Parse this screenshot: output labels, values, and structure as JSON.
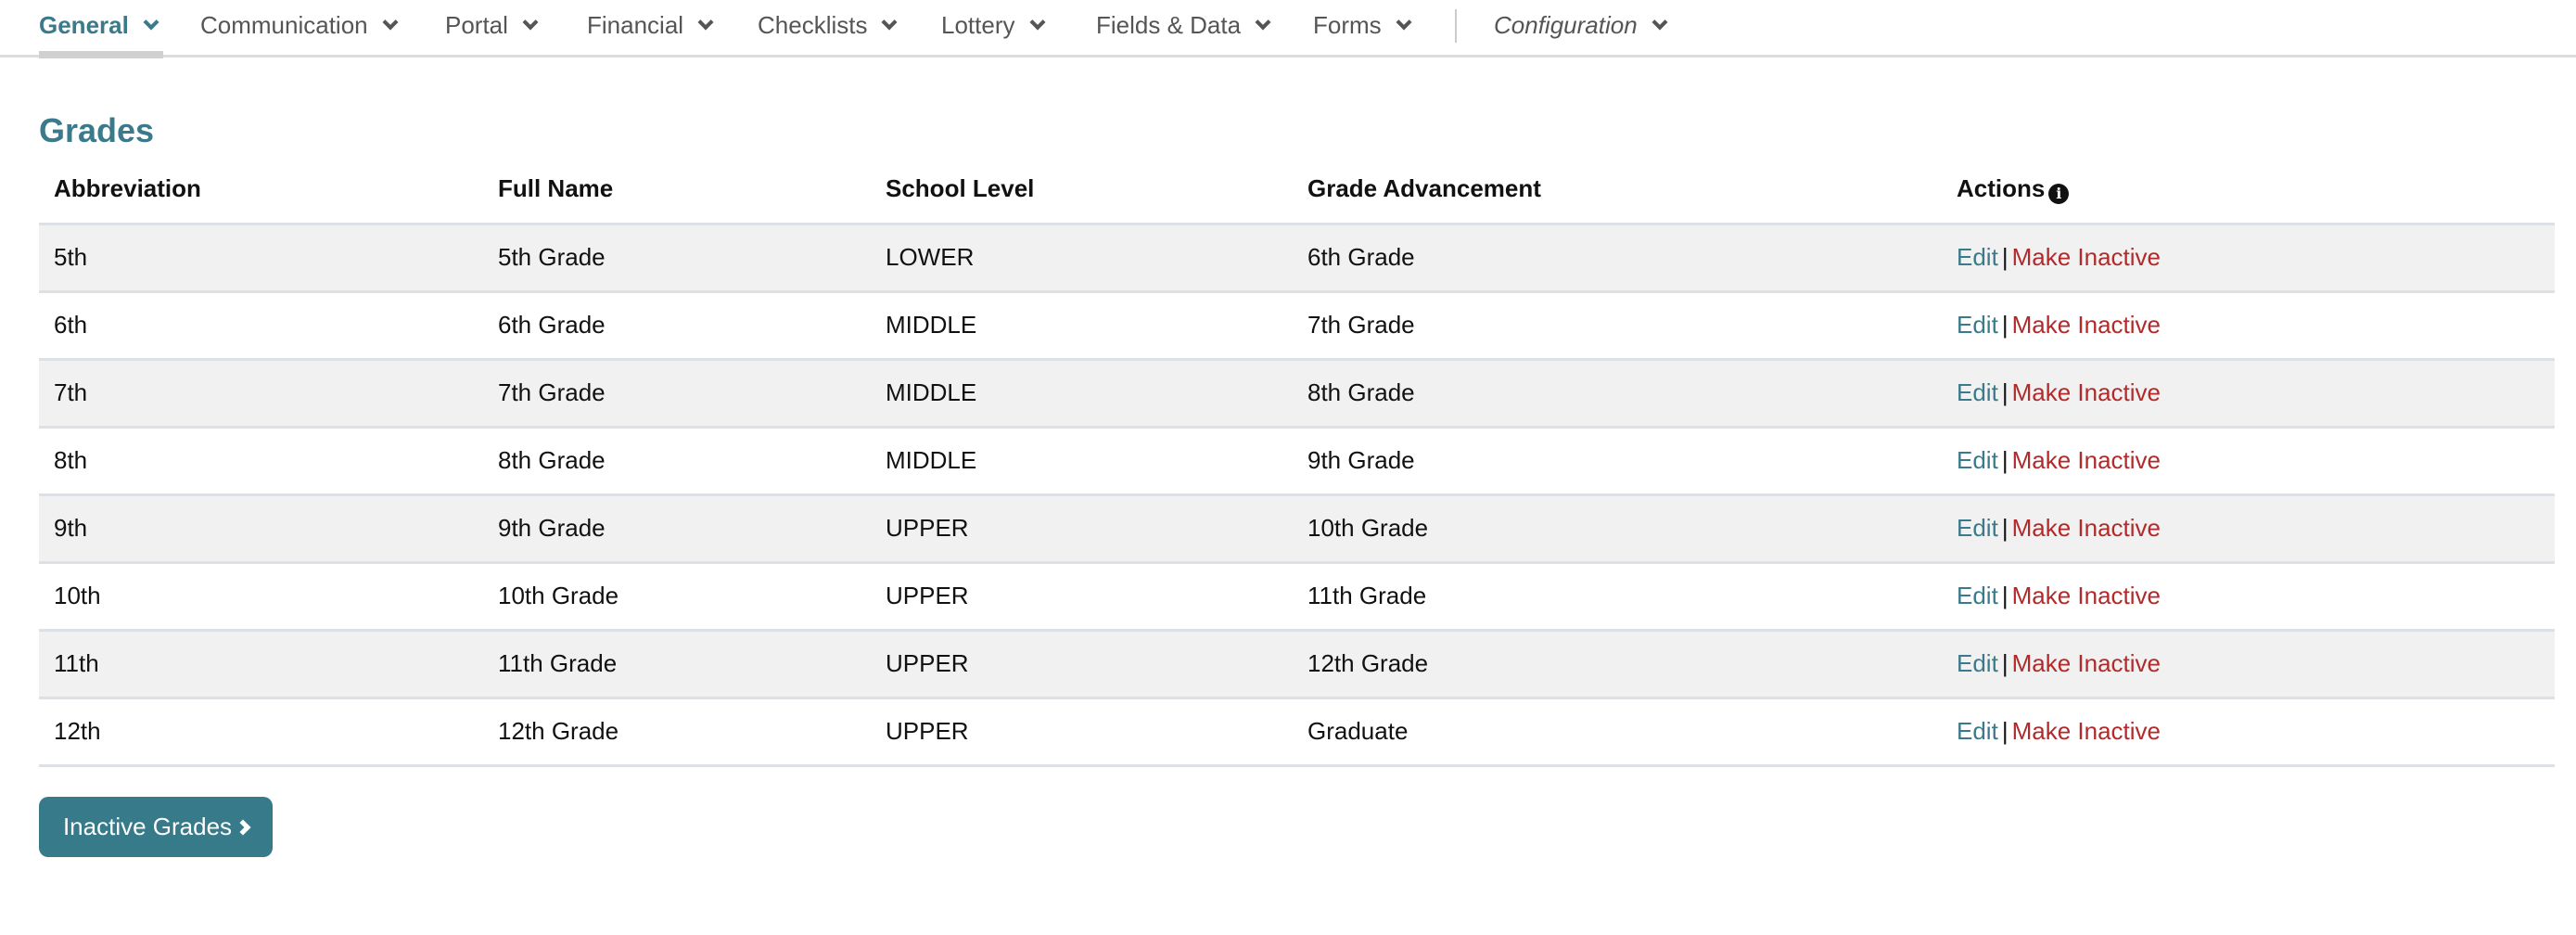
{
  "nav": {
    "items": [
      {
        "label": "General"
      },
      {
        "label": "Communication"
      },
      {
        "label": "Portal"
      },
      {
        "label": "Financial"
      },
      {
        "label": "Checklists"
      },
      {
        "label": "Lottery"
      },
      {
        "label": "Fields & Data"
      },
      {
        "label": "Forms"
      },
      {
        "label": "Configuration"
      }
    ],
    "active": "General"
  },
  "page": {
    "title": "Grades"
  },
  "table": {
    "headers": [
      "Abbreviation",
      "Full Name",
      "School Level",
      "Grade Advancement",
      "Actions"
    ],
    "rows": [
      {
        "abbr": "5th",
        "name": "5th Grade",
        "level": "LOWER",
        "advance": "6th Grade"
      },
      {
        "abbr": "6th",
        "name": "6th Grade",
        "level": "MIDDLE",
        "advance": "7th Grade"
      },
      {
        "abbr": "7th",
        "name": "7th Grade",
        "level": "MIDDLE",
        "advance": "8th Grade"
      },
      {
        "abbr": "8th",
        "name": "8th Grade",
        "level": "MIDDLE",
        "advance": "9th Grade"
      },
      {
        "abbr": "9th",
        "name": "9th Grade",
        "level": "UPPER",
        "advance": "10th Grade"
      },
      {
        "abbr": "10th",
        "name": "10th Grade",
        "level": "UPPER",
        "advance": "11th Grade"
      },
      {
        "abbr": "11th",
        "name": "11th Grade",
        "level": "UPPER",
        "advance": "12th Grade"
      },
      {
        "abbr": "12th",
        "name": "12th Grade",
        "level": "UPPER",
        "advance": "Graduate"
      }
    ],
    "actions": {
      "edit": "Edit",
      "separator": "|",
      "inactive": "Make Inactive"
    }
  },
  "button": {
    "inactive_grades": "Inactive Grades"
  },
  "colors": {
    "accent": "#3a7a8a",
    "danger": "#b22a2a",
    "stripe": "#f1f1f1",
    "button": "#377a8a"
  }
}
